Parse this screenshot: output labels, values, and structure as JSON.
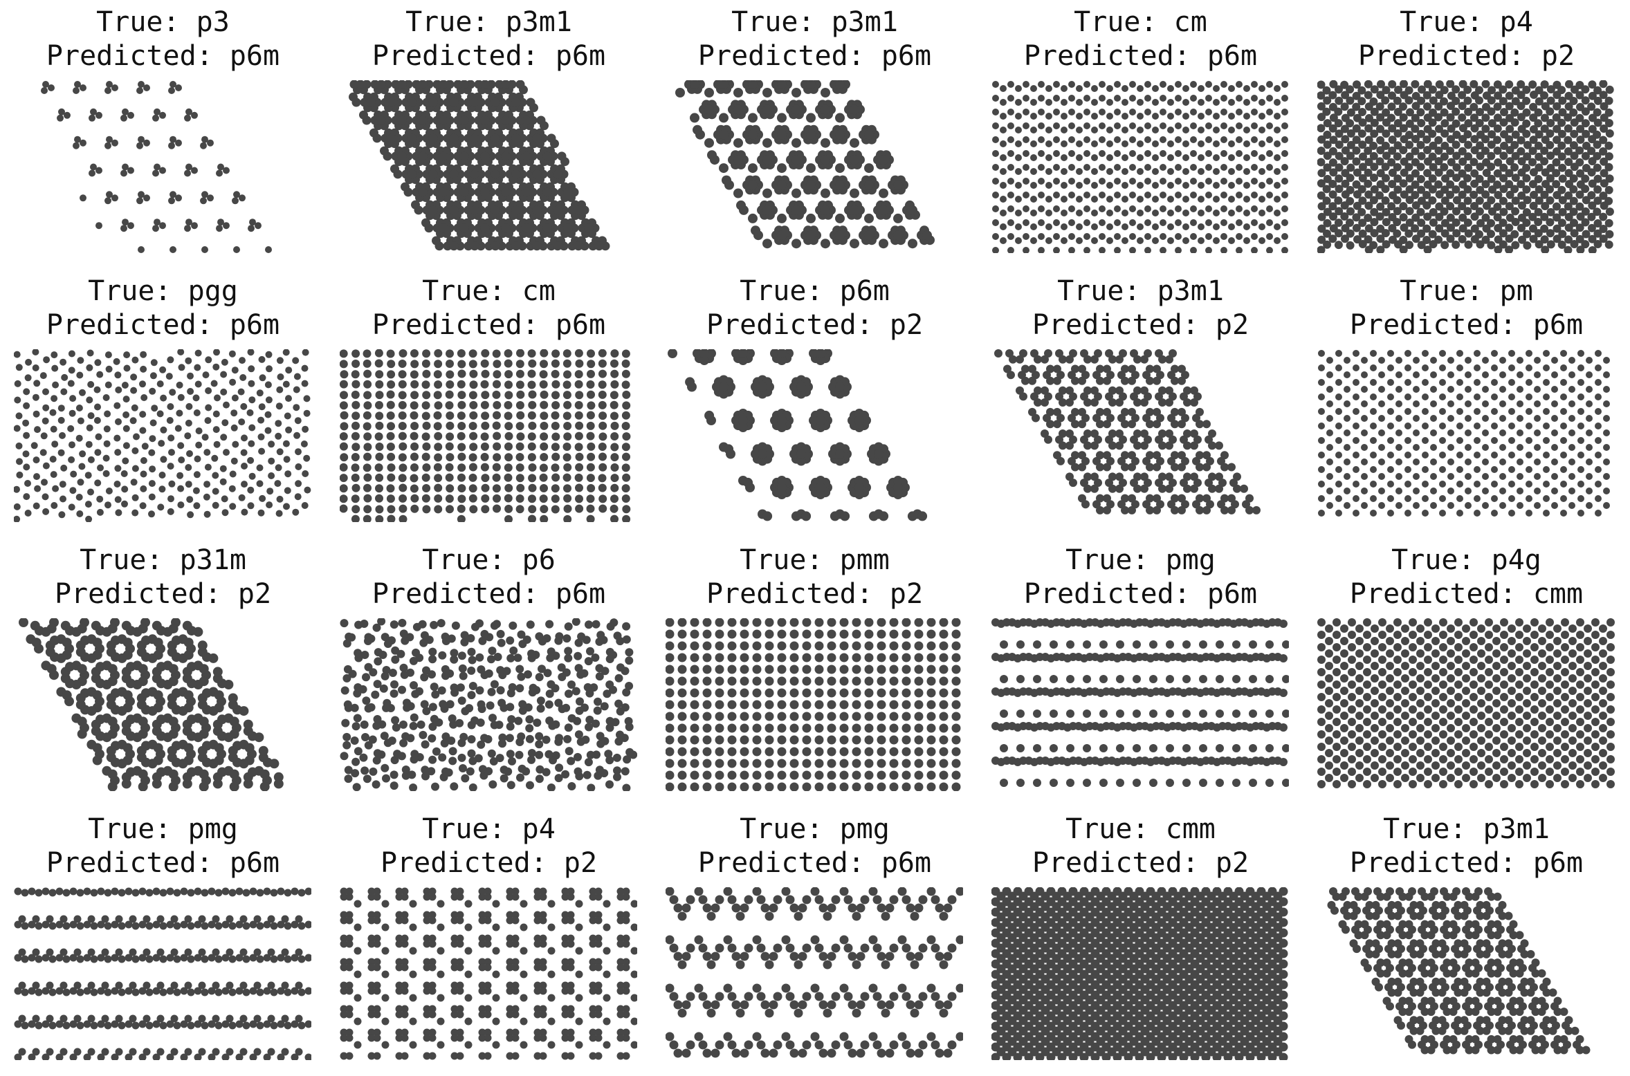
{
  "panels": [
    {
      "true_label": "True: p3",
      "pred_label": "Predicted: p6m",
      "pattern": "p3"
    },
    {
      "true_label": "True: p3m1",
      "pred_label": "Predicted: p6m",
      "pattern": "p3m1"
    },
    {
      "true_label": "True: p3m1",
      "pred_label": "Predicted: p6m",
      "pattern": "p3m1-dense"
    },
    {
      "true_label": "True: cm",
      "pred_label": "Predicted: p6m",
      "pattern": "cm"
    },
    {
      "true_label": "True: p4",
      "pred_label": "Predicted: p2",
      "pattern": "p4"
    },
    {
      "true_label": "True: pgg",
      "pred_label": "Predicted: p6m",
      "pattern": "pgg"
    },
    {
      "true_label": "True: cm",
      "pred_label": "Predicted: p6m",
      "pattern": "cm-dense"
    },
    {
      "true_label": "True: p6m",
      "pred_label": "Predicted: p2",
      "pattern": "p6m"
    },
    {
      "true_label": "True: p3m1",
      "pred_label": "Predicted: p2",
      "pattern": "p3m1-b"
    },
    {
      "true_label": "True: pm",
      "pred_label": "Predicted: p6m",
      "pattern": "pm"
    },
    {
      "true_label": "True: p31m",
      "pred_label": "Predicted: p2",
      "pattern": "p31m"
    },
    {
      "true_label": "True: p6",
      "pred_label": "Predicted: p6m",
      "pattern": "p6"
    },
    {
      "true_label": "True: pmm",
      "pred_label": "Predicted: p2",
      "pattern": "pmm"
    },
    {
      "true_label": "True: pmg",
      "pred_label": "Predicted: p6m",
      "pattern": "pmg-stripes"
    },
    {
      "true_label": "True: p4g",
      "pred_label": "Predicted: cmm",
      "pattern": "p4g"
    },
    {
      "true_label": "True: pmg",
      "pred_label": "Predicted: p6m",
      "pattern": "pmg-rows"
    },
    {
      "true_label": "True: p4",
      "pred_label": "Predicted: p2",
      "pattern": "p4-sparse"
    },
    {
      "true_label": "True: pmg",
      "pred_label": "Predicted: p6m",
      "pattern": "pmg-zigzag"
    },
    {
      "true_label": "True: cmm",
      "pred_label": "Predicted: p2",
      "pattern": "cmm"
    },
    {
      "true_label": "True: p3m1",
      "pred_label": "Predicted: p6m",
      "pattern": "p3m1-c"
    }
  ],
  "dot_color": "#474747"
}
